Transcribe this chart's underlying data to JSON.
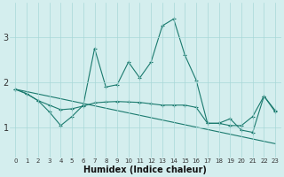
{
  "xlabel": "Humidex (Indice chaleur)",
  "x": [
    0,
    1,
    2,
    3,
    4,
    5,
    6,
    7,
    8,
    9,
    10,
    11,
    12,
    13,
    14,
    15,
    16,
    17,
    18,
    19,
    20,
    21,
    22,
    23
  ],
  "line1": [
    1.85,
    1.75,
    1.6,
    1.35,
    1.05,
    1.25,
    1.5,
    2.75,
    1.9,
    1.95,
    2.45,
    2.1,
    2.45,
    3.25,
    3.4,
    2.6,
    2.05,
    1.1,
    1.1,
    1.2,
    0.95,
    0.9,
    1.7,
    1.35
  ],
  "line2": [
    1.85,
    1.75,
    1.6,
    1.5,
    1.4,
    1.42,
    1.48,
    1.55,
    1.57,
    1.58,
    1.57,
    1.56,
    1.53,
    1.5,
    1.5,
    1.5,
    1.45,
    1.1,
    1.1,
    1.05,
    1.05,
    1.25,
    1.7,
    1.38
  ],
  "line3_x": [
    0,
    23
  ],
  "line3_y": [
    1.85,
    0.65
  ],
  "line_color": "#1a7a6e",
  "bg_color": "#d4eeee",
  "grid_color": "#a8d8d8",
  "yticks": [
    1,
    2,
    3
  ],
  "ylim": [
    0.35,
    3.75
  ],
  "xlim": [
    -0.5,
    23.5
  ]
}
